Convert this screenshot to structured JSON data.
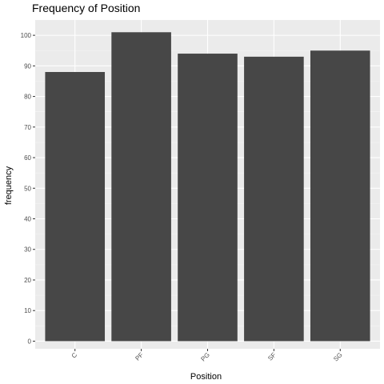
{
  "chart_data": {
    "type": "bar",
    "title": "Frequency of Position",
    "xlabel": "Position",
    "ylabel": "frequency",
    "categories": [
      "C",
      "PF",
      "PG",
      "SF",
      "SG"
    ],
    "values": [
      88,
      101,
      94,
      93,
      95
    ],
    "y_ticks": [
      0,
      10,
      20,
      30,
      40,
      50,
      60,
      70,
      80,
      90,
      100
    ],
    "ylim": [
      -2.5,
      105
    ],
    "grid": true,
    "legend": "none",
    "colors": {
      "bar": "#474747",
      "panel": "#ebebeb",
      "grid_major": "#ffffff",
      "grid_minor": "#f5f5f5",
      "tick_label": "#4d4d4d",
      "tick_mark": "#333333"
    }
  }
}
